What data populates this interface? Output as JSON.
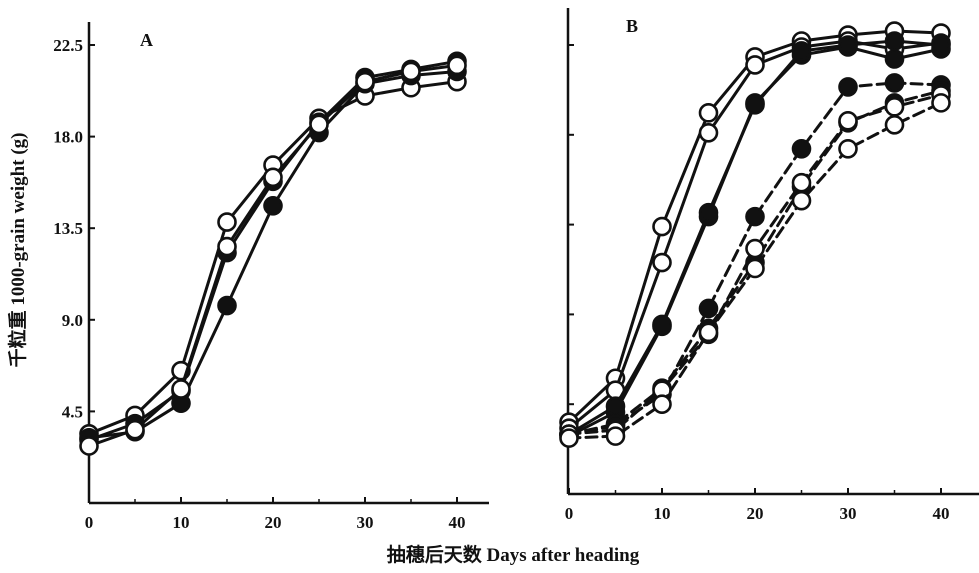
{
  "figure": {
    "xlabel": "抽穗后天数  Days after heading",
    "ylabel": "千粒重  1000-grain weight (g)"
  },
  "chart_data": [
    {
      "type": "line",
      "panel_label": "A",
      "xlim": [
        0,
        40
      ],
      "ylim": [
        0,
        23.5
      ],
      "x_ticks": [
        0,
        10,
        20,
        30,
        40
      ],
      "y_ticks": [
        4.5,
        9.0,
        13.5,
        18.0,
        22.5
      ],
      "y_tick_labels": [
        "4.5",
        "9.0",
        "13.5",
        "18.0",
        "22.5"
      ],
      "grid": false,
      "x": [
        0,
        5,
        10,
        15,
        20,
        25,
        30,
        35,
        40
      ],
      "series": [
        {
          "marker": "open-circle",
          "linestyle": "solid",
          "values": [
            3.4,
            4.3,
            6.5,
            13.8,
            16.6,
            18.9,
            20.0,
            20.4,
            20.7
          ]
        },
        {
          "marker": "filled-circle",
          "linestyle": "solid",
          "values": [
            3.1,
            3.9,
            5.5,
            12.3,
            15.8,
            18.7,
            20.9,
            21.3,
            21.7
          ]
        },
        {
          "marker": "filled-circle",
          "linestyle": "solid",
          "values": [
            3.2,
            3.5,
            4.9,
            9.7,
            14.6,
            18.2,
            20.6,
            21.0,
            21.2
          ]
        },
        {
          "marker": "open-circle",
          "linestyle": "solid",
          "values": [
            2.8,
            3.6,
            5.6,
            12.6,
            16.0,
            18.6,
            20.7,
            21.2,
            21.5
          ]
        }
      ]
    },
    {
      "type": "line",
      "panel_label": "B",
      "xlim": [
        0,
        40
      ],
      "ylim": [
        0,
        23.5
      ],
      "x_ticks": [
        0,
        10,
        20,
        30,
        40
      ],
      "grid": false,
      "x": [
        0,
        5,
        10,
        15,
        20,
        25,
        30,
        35,
        40
      ],
      "series": [
        {
          "marker": "open-circle",
          "linestyle": "solid",
          "values": [
            3.6,
            5.8,
            13.4,
            19.1,
            21.9,
            22.7,
            23.0,
            23.2,
            23.1
          ]
        },
        {
          "marker": "open-circle",
          "linestyle": "solid",
          "values": [
            3.3,
            5.2,
            11.6,
            18.1,
            21.5,
            22.4,
            22.7,
            22.3,
            22.6
          ]
        },
        {
          "marker": "filled-circle",
          "linestyle": "solid",
          "values": [
            2.9,
            4.1,
            8.4,
            13.9,
            19.6,
            22.0,
            22.4,
            21.8,
            22.3
          ]
        },
        {
          "marker": "filled-circle",
          "linestyle": "solid",
          "values": [
            3.0,
            4.4,
            8.5,
            14.1,
            19.5,
            22.2,
            22.5,
            22.7,
            22.5
          ]
        },
        {
          "marker": "filled-circle",
          "linestyle": "dashed",
          "values": [
            3.0,
            3.4,
            5.0,
            9.3,
            13.9,
            17.3,
            20.4,
            20.6,
            20.5
          ]
        },
        {
          "marker": "filled-circle",
          "linestyle": "dashed",
          "values": [
            3.0,
            3.5,
            5.3,
            8.3,
            11.6,
            15.4,
            18.6,
            19.6,
            20.2
          ]
        },
        {
          "marker": "open-circle",
          "linestyle": "dashed",
          "values": [
            3.0,
            3.2,
            5.2,
            8.0,
            12.3,
            15.6,
            18.7,
            19.4,
            20.0
          ]
        },
        {
          "marker": "open-circle",
          "linestyle": "dashed",
          "values": [
            2.8,
            2.9,
            4.5,
            8.1,
            11.3,
            14.7,
            17.3,
            18.5,
            19.6
          ]
        }
      ]
    }
  ]
}
